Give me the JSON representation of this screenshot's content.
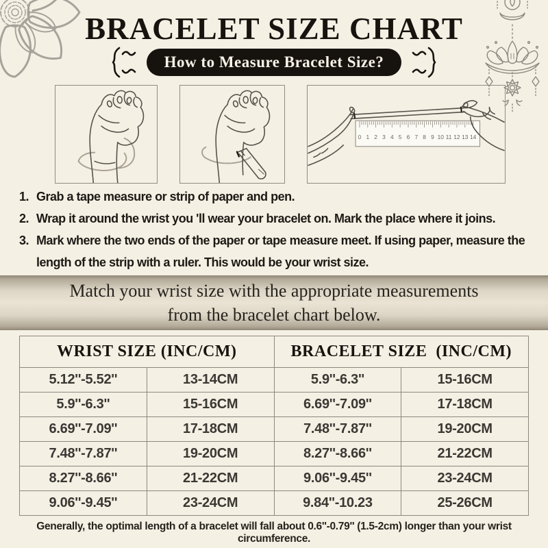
{
  "header": {
    "title": "BRACELET SIZE CHART",
    "badge": "How to Measure Bracelet Size?"
  },
  "instructions": {
    "items": [
      {
        "num": "1.",
        "text": "Grab a tape measure or strip of paper and pen."
      },
      {
        "num": "2.",
        "text": "Wrap it around the wrist you 'll wear your bracelet on. Mark the place where it joins."
      },
      {
        "num": "3.",
        "text": "Mark where the two ends of the paper or tape measure meet. If using paper, measure the length of the strip with a ruler. This would be your wrist size."
      }
    ]
  },
  "illustrations": {
    "ruler_numbers": [
      "0",
      "1",
      "2",
      "3",
      "4",
      "5",
      "6",
      "7",
      "8",
      "9",
      "10",
      "11",
      "12",
      "13",
      "14"
    ]
  },
  "banner": {
    "line1": "Match your wrist size with the appropriate measurements",
    "line2": "from the bracelet chart below."
  },
  "table": {
    "headers": [
      "WRIST SIZE (INC/CM)",
      "BRACELET SIZE  (INC/CM)"
    ],
    "rows": [
      [
        "5.12''-5.52''",
        "13-14CM",
        "5.9''-6.3''",
        "15-16CM"
      ],
      [
        "5.9''-6.3''",
        "15-16CM",
        "6.69''-7.09''",
        "17-18CM"
      ],
      [
        "6.69''-7.09''",
        "17-18CM",
        "7.48''-7.87''",
        "19-20CM"
      ],
      [
        "7.48''-7.87''",
        "19-20CM",
        "8.27''-8.66''",
        "21-22CM"
      ],
      [
        "8.27''-8.66''",
        "21-22CM",
        "9.06''-9.45''",
        "23-24CM"
      ],
      [
        "9.06''-9.45''",
        "23-24CM",
        "9.84''-10.23",
        "25-26CM"
      ]
    ]
  },
  "footer": {
    "note": "Generally, the optimal length of a bracelet will fall about 0.6''-0.79'' (1.5-2cm) longer than your wrist circumference."
  },
  "colors": {
    "background": "#f5f0e4",
    "badge_bg": "#16130f",
    "badge_text": "#f7f3e8",
    "table_border": "#8b887f",
    "line_art": "#a7a39b",
    "ornament": "#8d887f"
  }
}
